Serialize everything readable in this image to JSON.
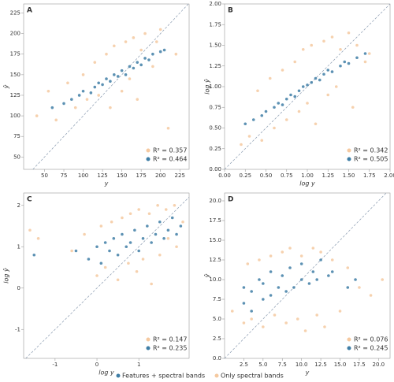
{
  "chart_data": [
    {
      "type": "scatter",
      "panel": "A",
      "x_label": "y",
      "y_label": "ŷ",
      "xlim": [
        23,
        237
      ],
      "ylim": [
        35,
        236
      ],
      "xticks": [
        50,
        75,
        100,
        125,
        150,
        175,
        200,
        225
      ],
      "yticks": [
        50,
        75,
        100,
        125,
        150,
        175,
        200,
        225
      ],
      "series": [
        {
          "name": "Only spectral bands",
          "color": "#f5c9a0",
          "label": "R² = 0.357",
          "x": [
            40,
            55,
            65,
            80,
            90,
            100,
            105,
            115,
            120,
            130,
            135,
            140,
            150,
            155,
            160,
            165,
            170,
            175,
            180,
            190,
            195,
            200,
            210,
            220
          ],
          "values": [
            100,
            130,
            95,
            140,
            110,
            150,
            120,
            165,
            125,
            175,
            110,
            185,
            130,
            190,
            145,
            195,
            120,
            180,
            200,
            160,
            190,
            205,
            85,
            175
          ]
        },
        {
          "name": "Features + spectral bands",
          "color": "#3f7ea6",
          "label": "R² = 0.464",
          "x": [
            60,
            75,
            85,
            95,
            100,
            110,
            115,
            120,
            125,
            130,
            135,
            140,
            145,
            150,
            155,
            160,
            165,
            170,
            175,
            180,
            185,
            190,
            200,
            205
          ],
          "values": [
            110,
            115,
            120,
            125,
            130,
            128,
            135,
            140,
            138,
            145,
            142,
            150,
            148,
            155,
            150,
            160,
            158,
            165,
            162,
            170,
            168,
            175,
            178,
            180
          ]
        }
      ]
    },
    {
      "type": "scatter",
      "panel": "B",
      "x_label": "log y",
      "y_label": "log ŷ",
      "xlim": [
        0,
        2
      ],
      "ylim": [
        0,
        2
      ],
      "xticks": [
        {
          "value": 0,
          "label": "0.00"
        },
        {
          "value": 0.25,
          "label": "0.25"
        },
        {
          "value": 0.5,
          "label": "0.50"
        },
        {
          "value": 0.75,
          "label": "0.75"
        },
        {
          "value": 1,
          "label": "1.00"
        },
        {
          "value": 1.25,
          "label": "1.25"
        },
        {
          "value": 1.5,
          "label": "1.50"
        },
        {
          "value": 1.75,
          "label": "1.75"
        },
        {
          "value": 2,
          "label": "2.00"
        }
      ],
      "yticks": [
        {
          "value": 0,
          "label": "0.00"
        },
        {
          "value": 0.25,
          "label": "0.25"
        },
        {
          "value": 0.5,
          "label": "0.50"
        },
        {
          "value": 0.75,
          "label": "0.75"
        },
        {
          "value": 1,
          "label": "1.00"
        },
        {
          "value": 1.25,
          "label": "1.25"
        },
        {
          "value": 1.5,
          "label": "1.50"
        },
        {
          "value": 1.75,
          "label": "1.75"
        },
        {
          "value": 2,
          "label": "2.00"
        }
      ],
      "series": [
        {
          "name": "Only spectral bands",
          "color": "#f5c9a0",
          "label": "R² = 0.342",
          "x": [
            0.2,
            0.3,
            0.4,
            0.45,
            0.55,
            0.6,
            0.7,
            0.75,
            0.85,
            0.9,
            0.95,
            1.0,
            1.05,
            1.1,
            1.2,
            1.25,
            1.3,
            1.35,
            1.4,
            1.5,
            1.55,
            1.6,
            1.7,
            1.75
          ],
          "values": [
            0.3,
            0.4,
            0.95,
            0.35,
            1.1,
            0.5,
            1.2,
            0.6,
            1.3,
            0.7,
            1.45,
            0.8,
            1.5,
            0.55,
            1.55,
            0.9,
            1.6,
            1.0,
            1.45,
            1.65,
            0.75,
            1.5,
            1.3,
            1.4
          ]
        },
        {
          "name": "Features + spectral bands",
          "color": "#3f7ea6",
          "label": "R² = 0.505",
          "x": [
            0.25,
            0.35,
            0.45,
            0.5,
            0.6,
            0.65,
            0.7,
            0.75,
            0.8,
            0.85,
            0.9,
            0.95,
            1.0,
            1.05,
            1.1,
            1.15,
            1.2,
            1.25,
            1.3,
            1.4,
            1.45,
            1.5,
            1.6,
            1.7
          ],
          "values": [
            0.55,
            0.6,
            0.65,
            0.7,
            0.75,
            0.8,
            0.78,
            0.85,
            0.9,
            0.88,
            0.95,
            1.0,
            1.02,
            1.05,
            1.1,
            1.08,
            1.15,
            1.2,
            1.18,
            1.25,
            1.3,
            1.28,
            1.35,
            1.4
          ]
        }
      ]
    },
    {
      "type": "scatter",
      "panel": "C",
      "x_label": "log y",
      "y_label": "log ŷ",
      "xlim": [
        -1.75,
        2.2
      ],
      "ylim": [
        -1.7,
        2.3
      ],
      "xticks": [
        -1,
        0,
        1
      ],
      "yticks": [
        -1,
        0,
        1,
        2
      ],
      "series": [
        {
          "name": "Only spectral bands",
          "color": "#f5c9a0",
          "label": "R² = 0.147",
          "x": [
            -1.6,
            -1.4,
            -0.6,
            -0.3,
            0,
            0.1,
            0.2,
            0.35,
            0.5,
            0.6,
            0.75,
            0.8,
            0.95,
            1.0,
            1.1,
            1.25,
            1.3,
            1.45,
            1.5,
            1.65,
            1.7,
            1.85,
            1.9,
            2.05
          ],
          "values": [
            1.4,
            1.2,
            0.9,
            1.3,
            0.3,
            1.5,
            0.5,
            1.6,
            0.2,
            1.7,
            0.6,
            1.8,
            0.4,
            1.9,
            0.7,
            1.8,
            0.1,
            2.0,
            0.8,
            1.9,
            1.2,
            2.0,
            1.0,
            1.6
          ]
        },
        {
          "name": "Features + spectral bands",
          "color": "#3f7ea6",
          "label": "R² = 0.235",
          "x": [
            -1.5,
            -0.5,
            -0.2,
            0,
            0.1,
            0.2,
            0.3,
            0.4,
            0.5,
            0.6,
            0.7,
            0.8,
            0.9,
            1.0,
            1.1,
            1.2,
            1.3,
            1.4,
            1.5,
            1.6,
            1.7,
            1.8,
            1.9,
            2.0
          ],
          "values": [
            0.8,
            0.9,
            0.7,
            1.0,
            0.6,
            1.1,
            0.9,
            1.2,
            0.8,
            1.3,
            1.0,
            1.1,
            1.4,
            0.9,
            1.2,
            1.5,
            1.1,
            1.3,
            1.6,
            1.2,
            1.4,
            1.7,
            1.3,
            1.5
          ]
        }
      ]
    },
    {
      "type": "scatter",
      "panel": "D",
      "x_label": "y",
      "y_label": "ŷ",
      "xlim": [
        0,
        21.5
      ],
      "ylim": [
        0,
        21
      ],
      "xticks": [
        2.5,
        {
          "value": 5,
          "label": "5.0"
        },
        7.5,
        {
          "value": 10,
          "label": "10.0"
        },
        12.5,
        {
          "value": 15,
          "label": "15.0"
        },
        17.5,
        {
          "value": 20,
          "label": "20.0"
        }
      ],
      "yticks": [
        {
          "value": 0,
          "label": "0.0"
        },
        2.5,
        {
          "value": 5,
          "label": "5.0"
        },
        7.5,
        {
          "value": 10,
          "label": "10.0"
        },
        12.5,
        {
          "value": 15,
          "label": "15.0"
        },
        17.5,
        {
          "value": 20,
          "label": "20.0"
        }
      ],
      "series": [
        {
          "name": "Only spectral bands",
          "color": "#f5c9a0",
          "label": "R² = 0.076",
          "x": [
            1,
            2.5,
            3,
            3.5,
            4.5,
            5,
            6,
            6.5,
            7.5,
            8,
            8.5,
            9.5,
            10,
            10.5,
            11.5,
            12,
            12.5,
            13,
            14,
            15,
            16,
            17.5,
            19,
            20.5
          ],
          "values": [
            6,
            4.5,
            12,
            5,
            12.5,
            4,
            13,
            5.5,
            13.5,
            4.5,
            14,
            5,
            13,
            3.5,
            14,
            5.5,
            13.5,
            4,
            12.5,
            6,
            11.5,
            9,
            8,
            10
          ]
        },
        {
          "name": "Features + spectral bands",
          "color": "#3f7ea6",
          "label": "R² = 0.245",
          "x": [
            2.5,
            2.5,
            3.5,
            3.5,
            4.5,
            5,
            5,
            6,
            6,
            7,
            7.5,
            8,
            8.5,
            9,
            10,
            10,
            11,
            11.5,
            12,
            12.5,
            13.5,
            14,
            16,
            17
          ],
          "values": [
            7,
            9,
            6,
            8.5,
            10,
            7.5,
            9.5,
            8,
            11,
            9,
            10.5,
            8.5,
            11.5,
            9,
            10,
            12,
            9.5,
            11,
            10,
            12.5,
            10.5,
            11,
            9,
            10
          ]
        }
      ]
    }
  ]
}
